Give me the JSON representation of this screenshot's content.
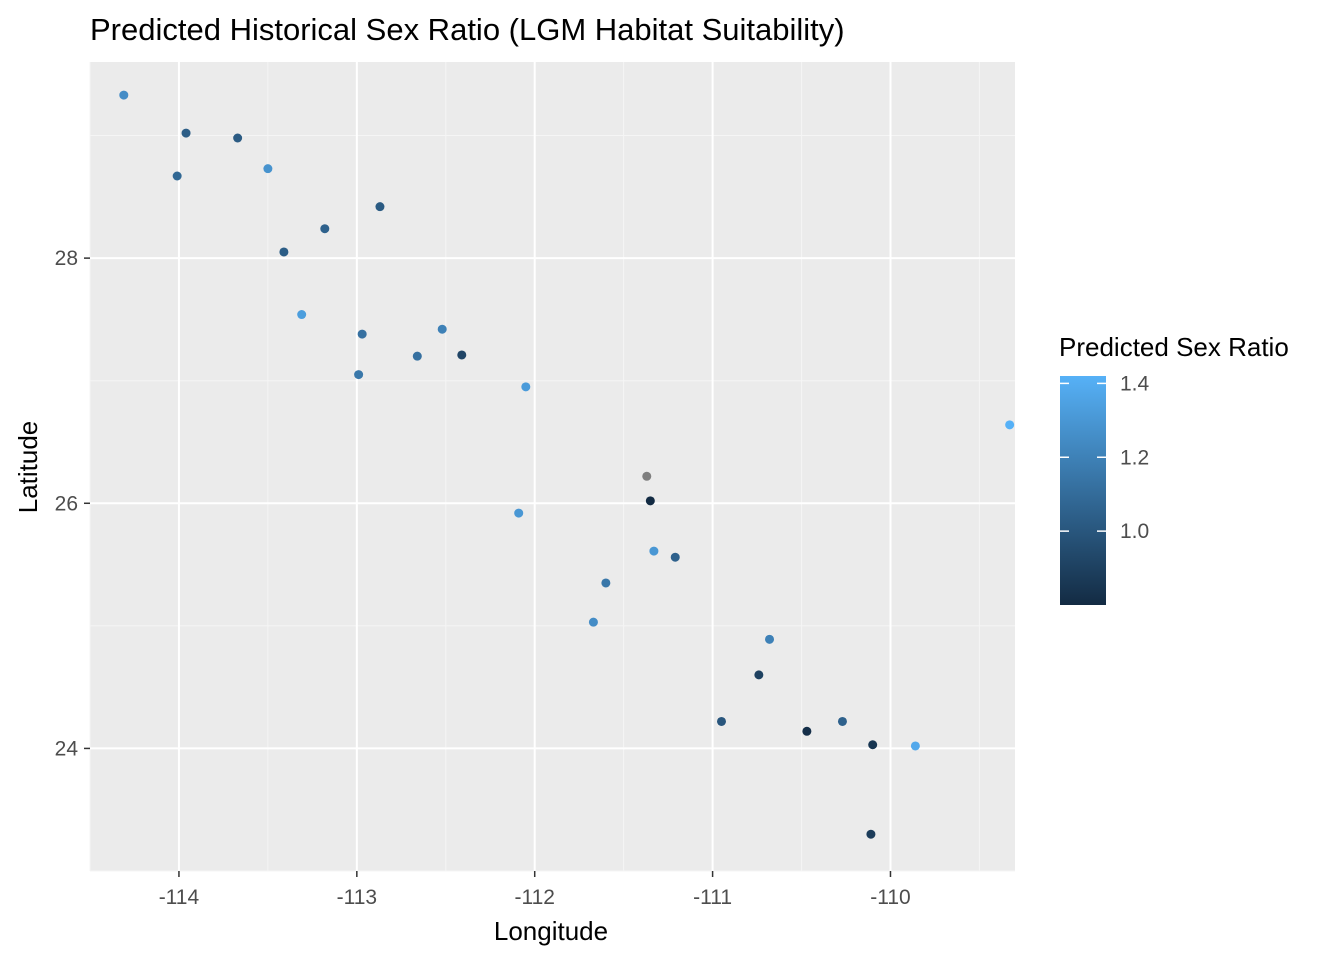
{
  "chart_data": {
    "type": "scatter",
    "title": "Predicted Historical Sex Ratio (LGM Habitat Suitability)",
    "xlabel": "Longitude",
    "ylabel": "Latitude",
    "xlim": [
      -114.5,
      -109.3
    ],
    "ylim": [
      23.0,
      29.6
    ],
    "xticks": [
      -114,
      -113,
      -112,
      -111,
      -110
    ],
    "yticks": [
      24,
      26,
      28
    ],
    "grid": true,
    "legend": {
      "title": "Predicted Sex Ratio",
      "placement": "right",
      "ticks": [
        1.0,
        1.2,
        1.4
      ],
      "range": [
        0.8,
        1.42
      ],
      "low_color": "#132b43",
      "high_color": "#56b1f7"
    },
    "na_color": "#7f7f7f",
    "points": [
      {
        "x": -114.31,
        "y": 29.33,
        "value": 1.25
      },
      {
        "x": -113.96,
        "y": 29.02,
        "value": 1.03
      },
      {
        "x": -114.01,
        "y": 28.67,
        "value": 1.08
      },
      {
        "x": -113.67,
        "y": 28.98,
        "value": 1.02
      },
      {
        "x": -113.5,
        "y": 28.73,
        "value": 1.28
      },
      {
        "x": -112.87,
        "y": 28.42,
        "value": 1.02
      },
      {
        "x": -113.18,
        "y": 28.24,
        "value": 1.05
      },
      {
        "x": -113.41,
        "y": 28.05,
        "value": 1.03
      },
      {
        "x": -113.31,
        "y": 27.54,
        "value": 1.33
      },
      {
        "x": -112.52,
        "y": 27.42,
        "value": 1.2
      },
      {
        "x": -112.97,
        "y": 27.38,
        "value": 1.12
      },
      {
        "x": -112.66,
        "y": 27.2,
        "value": 1.12
      },
      {
        "x": -112.41,
        "y": 27.21,
        "value": 0.92
      },
      {
        "x": -112.99,
        "y": 27.05,
        "value": 1.15
      },
      {
        "x": -112.05,
        "y": 26.95,
        "value": 1.32
      },
      {
        "x": -109.33,
        "y": 26.64,
        "value": 1.42
      },
      {
        "x": -111.37,
        "y": 26.22,
        "value": null
      },
      {
        "x": -111.35,
        "y": 26.02,
        "value": 0.8
      },
      {
        "x": -112.09,
        "y": 25.92,
        "value": 1.3
      },
      {
        "x": -111.33,
        "y": 25.61,
        "value": 1.3
      },
      {
        "x": -111.21,
        "y": 25.56,
        "value": 1.05
      },
      {
        "x": -111.6,
        "y": 25.35,
        "value": 1.15
      },
      {
        "x": -111.67,
        "y": 25.03,
        "value": 1.25
      },
      {
        "x": -110.68,
        "y": 24.89,
        "value": 1.2
      },
      {
        "x": -110.74,
        "y": 24.6,
        "value": 0.9
      },
      {
        "x": -110.95,
        "y": 24.22,
        "value": 1.0
      },
      {
        "x": -110.27,
        "y": 24.22,
        "value": 1.05
      },
      {
        "x": -110.47,
        "y": 24.14,
        "value": 0.82
      },
      {
        "x": -110.1,
        "y": 24.03,
        "value": 0.85
      },
      {
        "x": -109.86,
        "y": 24.02,
        "value": 1.38
      },
      {
        "x": -110.11,
        "y": 23.3,
        "value": 0.88
      }
    ]
  }
}
